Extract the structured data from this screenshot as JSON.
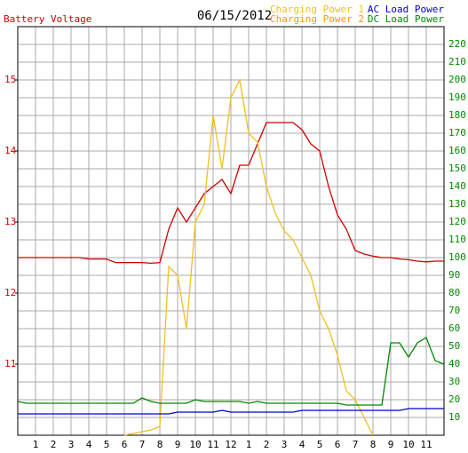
{
  "chart_data": {
    "type": "line",
    "title": "06/15/2012",
    "x": [
      0,
      0.5,
      1,
      1.5,
      2,
      2.5,
      3,
      3.5,
      4,
      4.5,
      5,
      5.5,
      6,
      6.5,
      7,
      7.5,
      8,
      8.5,
      9,
      9.5,
      10,
      10.5,
      11,
      11.5,
      12,
      12.5,
      13,
      13.5,
      14,
      14.5,
      15,
      15.5,
      16,
      16.5,
      17,
      17.5,
      18,
      18.5,
      19,
      19.5,
      20,
      20.5,
      21,
      21.5,
      22,
      22.5,
      23,
      23.5,
      24
    ],
    "xlim": [
      0,
      24
    ],
    "xticks": [
      {
        "value": 1,
        "label": "1"
      },
      {
        "value": 2,
        "label": "2"
      },
      {
        "value": 3,
        "label": "3"
      },
      {
        "value": 4,
        "label": "4"
      },
      {
        "value": 5,
        "label": "5"
      },
      {
        "value": 6,
        "label": "6"
      },
      {
        "value": 7,
        "label": "7"
      },
      {
        "value": 8,
        "label": "8"
      },
      {
        "value": 9,
        "label": "9"
      },
      {
        "value": 10,
        "label": "10"
      },
      {
        "value": 11,
        "label": "11"
      },
      {
        "value": 12,
        "label": "12"
      },
      {
        "value": 13,
        "label": "1"
      },
      {
        "value": 14,
        "label": "2"
      },
      {
        "value": 15,
        "label": "3"
      },
      {
        "value": 16,
        "label": "4"
      },
      {
        "value": 17,
        "label": "5"
      },
      {
        "value": 18,
        "label": "6"
      },
      {
        "value": 19,
        "label": "7"
      },
      {
        "value": 20,
        "label": "8"
      },
      {
        "value": 21,
        "label": "9"
      },
      {
        "value": 22,
        "label": "10"
      },
      {
        "value": 23,
        "label": "11"
      }
    ],
    "ylim": [
      10,
      15.75
    ],
    "yticks": [
      11,
      12,
      13,
      14,
      15
    ],
    "y2lim": [
      0,
      230
    ],
    "y2ticks": [
      10,
      20,
      30,
      40,
      50,
      60,
      70,
      80,
      90,
      100,
      110,
      120,
      130,
      140,
      150,
      160,
      170,
      180,
      190,
      200,
      210,
      220
    ],
    "grid": true,
    "series": [
      {
        "name": "Battery Voltage",
        "color": "#d00000",
        "axis": "y",
        "values": [
          12.5,
          12.5,
          12.5,
          12.5,
          12.5,
          12.5,
          12.5,
          12.5,
          12.48,
          12.48,
          12.48,
          12.43,
          12.43,
          12.43,
          12.43,
          12.42,
          12.43,
          12.9,
          13.2,
          13.0,
          13.2,
          13.4,
          13.5,
          13.6,
          13.4,
          13.8,
          13.8,
          14.1,
          14.4,
          14.4,
          14.4,
          14.4,
          14.3,
          14.1,
          14.0,
          13.5,
          13.1,
          12.9,
          12.6,
          12.55,
          12.52,
          12.5,
          12.5,
          12.48,
          12.47,
          12.45,
          12.44,
          12.45,
          12.45
        ]
      },
      {
        "name": "Charging Power 1",
        "color": "#f0c020",
        "axis": "y2",
        "values": [
          null,
          null,
          null,
          null,
          null,
          null,
          null,
          null,
          null,
          null,
          null,
          null,
          0,
          1,
          2,
          3,
          5,
          95,
          90,
          60,
          120,
          130,
          180,
          150,
          190,
          200,
          170,
          165,
          140,
          125,
          115,
          110,
          100,
          90,
          70,
          60,
          45,
          25,
          20,
          10,
          0,
          null,
          null,
          null,
          null,
          null,
          null,
          null,
          null
        ]
      },
      {
        "name": "Charging Power 2",
        "color": "#ff9900",
        "axis": "y2",
        "values": [
          null,
          null,
          null,
          null,
          null,
          null,
          null,
          null,
          null,
          null,
          null,
          null,
          null,
          null,
          null,
          null,
          null,
          null,
          null,
          null,
          null,
          null,
          null,
          null,
          null,
          null,
          null,
          null,
          null,
          null,
          null,
          null,
          null,
          null,
          null,
          null,
          null,
          null,
          null,
          null,
          null,
          null,
          null,
          null,
          null,
          null,
          null,
          null,
          null
        ]
      },
      {
        "name": "AC Load Power",
        "color": "#0000cc",
        "axis": "y2",
        "values": [
          12,
          12,
          12,
          12,
          12,
          12,
          12,
          12,
          12,
          12,
          12,
          12,
          12,
          12,
          12,
          12,
          12,
          12,
          13,
          13,
          13,
          13,
          13,
          14,
          13,
          13,
          13,
          13,
          13,
          13,
          13,
          13,
          14,
          14,
          14,
          14,
          14,
          14,
          14,
          14,
          14,
          14,
          14,
          14,
          15,
          15,
          15,
          15,
          15
        ]
      },
      {
        "name": "DC Load Power",
        "color": "#008800",
        "axis": "y2",
        "values": [
          19,
          18,
          18,
          18,
          18,
          18,
          18,
          18,
          18,
          18,
          18,
          18,
          18,
          18,
          21,
          19,
          18,
          18,
          18,
          18,
          20,
          19,
          19,
          19,
          19,
          19,
          18,
          19,
          18,
          18,
          18,
          18,
          18,
          18,
          18,
          18,
          18,
          17,
          17,
          17,
          17,
          17,
          52,
          52,
          44,
          52,
          55,
          42,
          40
        ]
      }
    ]
  }
}
